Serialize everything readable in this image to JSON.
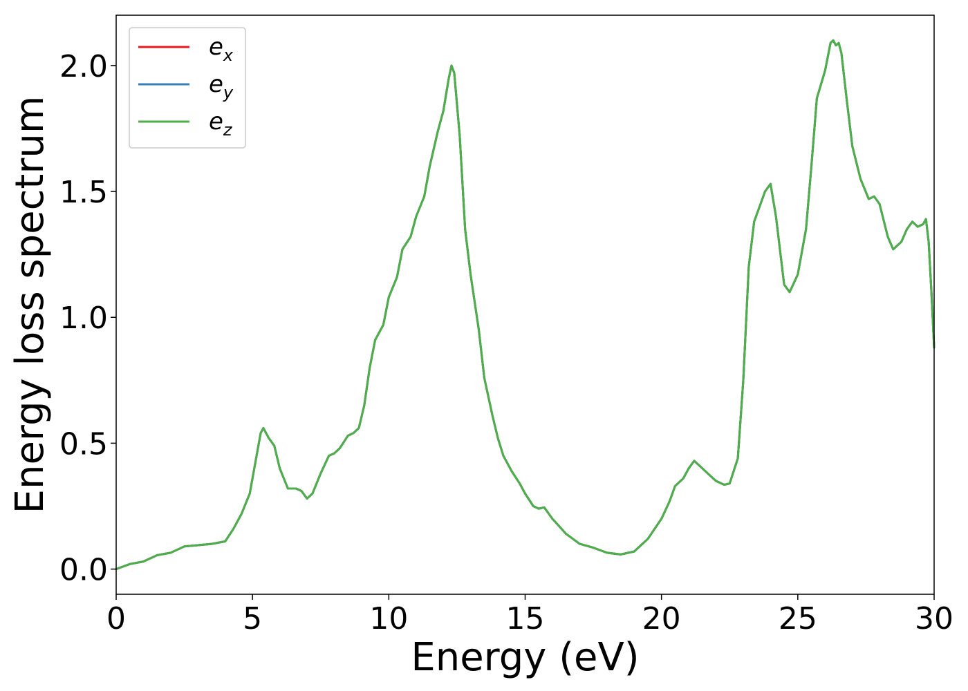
{
  "chart_data": {
    "type": "line",
    "xlabel": "Energy (eV)",
    "ylabel": "Energy loss spectrum",
    "xlim": [
      0,
      30
    ],
    "ylim": [
      -0.1,
      2.2
    ],
    "grid": false,
    "legend_position": "top-left",
    "x_ticks": [
      0,
      5,
      10,
      15,
      20,
      25,
      30
    ],
    "x_tick_labels": [
      "0",
      "5",
      "10",
      "15",
      "20",
      "25",
      "30"
    ],
    "y_ticks": [
      0.0,
      0.5,
      1.0,
      1.5,
      2.0
    ],
    "y_tick_labels": [
      "0.0",
      "0.5",
      "1.0",
      "1.5",
      "2.0"
    ],
    "x": [
      0,
      0.5,
      1.0,
      1.5,
      2.0,
      2.5,
      3.0,
      3.5,
      4.0,
      4.3,
      4.6,
      4.9,
      5.1,
      5.3,
      5.4,
      5.6,
      5.8,
      6.0,
      6.3,
      6.6,
      6.8,
      7.0,
      7.2,
      7.5,
      7.8,
      8.0,
      8.2,
      8.5,
      8.7,
      8.9,
      9.1,
      9.3,
      9.5,
      9.8,
      10.0,
      10.3,
      10.5,
      10.8,
      11.0,
      11.3,
      11.5,
      11.8,
      12.0,
      12.2,
      12.3,
      12.4,
      12.6,
      12.8,
      13.0,
      13.3,
      13.5,
      13.8,
      14.0,
      14.2,
      14.5,
      14.8,
      15.0,
      15.3,
      15.5,
      15.7,
      16.0,
      16.5,
      17.0,
      17.5,
      18.0,
      18.5,
      19.0,
      19.5,
      20.0,
      20.3,
      20.5,
      20.8,
      21.0,
      21.2,
      21.5,
      21.8,
      22.0,
      22.3,
      22.5,
      22.8,
      23.0,
      23.2,
      23.4,
      23.6,
      23.8,
      24.0,
      24.2,
      24.5,
      24.7,
      25.0,
      25.3,
      25.5,
      25.7,
      26.0,
      26.2,
      26.3,
      26.4,
      26.5,
      26.6,
      26.8,
      27.0,
      27.3,
      27.6,
      27.8,
      28.0,
      28.3,
      28.5,
      28.8,
      29.0,
      29.2,
      29.4,
      29.6,
      29.7,
      29.8,
      29.9,
      30.0
    ],
    "series": [
      {
        "name": "e_x",
        "label_base": "e",
        "label_sub": "x",
        "color": "#e41a1c",
        "values": [
          0.0,
          0.02,
          0.03,
          0.055,
          0.065,
          0.09,
          0.095,
          0.1,
          0.11,
          0.16,
          0.22,
          0.3,
          0.42,
          0.54,
          0.56,
          0.52,
          0.49,
          0.4,
          0.32,
          0.32,
          0.31,
          0.28,
          0.3,
          0.38,
          0.45,
          0.46,
          0.48,
          0.53,
          0.54,
          0.56,
          0.65,
          0.8,
          0.91,
          0.97,
          1.08,
          1.16,
          1.27,
          1.32,
          1.4,
          1.48,
          1.6,
          1.74,
          1.82,
          1.95,
          2.0,
          1.97,
          1.72,
          1.35,
          1.17,
          0.95,
          0.76,
          0.61,
          0.52,
          0.45,
          0.39,
          0.34,
          0.3,
          0.25,
          0.24,
          0.245,
          0.2,
          0.14,
          0.1,
          0.085,
          0.065,
          0.058,
          0.07,
          0.12,
          0.2,
          0.27,
          0.33,
          0.36,
          0.4,
          0.43,
          0.4,
          0.37,
          0.35,
          0.335,
          0.34,
          0.44,
          0.75,
          1.2,
          1.38,
          1.44,
          1.5,
          1.53,
          1.4,
          1.13,
          1.1,
          1.17,
          1.35,
          1.6,
          1.87,
          1.98,
          2.09,
          2.1,
          2.08,
          2.09,
          2.05,
          1.86,
          1.68,
          1.55,
          1.47,
          1.48,
          1.45,
          1.32,
          1.27,
          1.3,
          1.35,
          1.38,
          1.36,
          1.37,
          1.39,
          1.3,
          1.1,
          0.88
        ]
      },
      {
        "name": "e_y",
        "label_base": "e",
        "label_sub": "y",
        "color": "#377eb8",
        "values": [
          0.0,
          0.02,
          0.03,
          0.055,
          0.065,
          0.09,
          0.095,
          0.1,
          0.11,
          0.16,
          0.22,
          0.3,
          0.42,
          0.54,
          0.56,
          0.52,
          0.49,
          0.4,
          0.32,
          0.32,
          0.31,
          0.28,
          0.3,
          0.38,
          0.45,
          0.46,
          0.48,
          0.53,
          0.54,
          0.56,
          0.65,
          0.8,
          0.91,
          0.97,
          1.08,
          1.16,
          1.27,
          1.32,
          1.4,
          1.48,
          1.6,
          1.74,
          1.82,
          1.95,
          2.0,
          1.97,
          1.72,
          1.35,
          1.17,
          0.95,
          0.76,
          0.61,
          0.52,
          0.45,
          0.39,
          0.34,
          0.3,
          0.25,
          0.24,
          0.245,
          0.2,
          0.14,
          0.1,
          0.085,
          0.065,
          0.058,
          0.07,
          0.12,
          0.2,
          0.27,
          0.33,
          0.36,
          0.4,
          0.43,
          0.4,
          0.37,
          0.35,
          0.335,
          0.34,
          0.44,
          0.75,
          1.2,
          1.38,
          1.44,
          1.5,
          1.53,
          1.4,
          1.13,
          1.1,
          1.17,
          1.35,
          1.6,
          1.87,
          1.98,
          2.09,
          2.1,
          2.08,
          2.09,
          2.05,
          1.86,
          1.68,
          1.55,
          1.47,
          1.48,
          1.45,
          1.32,
          1.27,
          1.3,
          1.35,
          1.38,
          1.36,
          1.37,
          1.39,
          1.3,
          1.1,
          0.88
        ]
      },
      {
        "name": "e_z",
        "label_base": "e",
        "label_sub": "z",
        "color": "#4daf4a",
        "values": [
          0.0,
          0.02,
          0.03,
          0.055,
          0.065,
          0.09,
          0.095,
          0.1,
          0.11,
          0.16,
          0.22,
          0.3,
          0.42,
          0.54,
          0.56,
          0.52,
          0.49,
          0.4,
          0.32,
          0.32,
          0.31,
          0.28,
          0.3,
          0.38,
          0.45,
          0.46,
          0.48,
          0.53,
          0.54,
          0.56,
          0.65,
          0.8,
          0.91,
          0.97,
          1.08,
          1.16,
          1.27,
          1.32,
          1.4,
          1.48,
          1.6,
          1.74,
          1.82,
          1.95,
          2.0,
          1.97,
          1.72,
          1.35,
          1.17,
          0.95,
          0.76,
          0.61,
          0.52,
          0.45,
          0.39,
          0.34,
          0.3,
          0.25,
          0.24,
          0.245,
          0.2,
          0.14,
          0.1,
          0.085,
          0.065,
          0.058,
          0.07,
          0.12,
          0.2,
          0.27,
          0.33,
          0.36,
          0.4,
          0.43,
          0.4,
          0.37,
          0.35,
          0.335,
          0.34,
          0.44,
          0.75,
          1.2,
          1.38,
          1.44,
          1.5,
          1.53,
          1.4,
          1.13,
          1.1,
          1.17,
          1.35,
          1.6,
          1.87,
          1.98,
          2.09,
          2.1,
          2.08,
          2.09,
          2.05,
          1.86,
          1.68,
          1.55,
          1.47,
          1.48,
          1.45,
          1.32,
          1.27,
          1.3,
          1.35,
          1.38,
          1.36,
          1.37,
          1.39,
          1.3,
          1.1,
          0.88
        ]
      }
    ]
  }
}
